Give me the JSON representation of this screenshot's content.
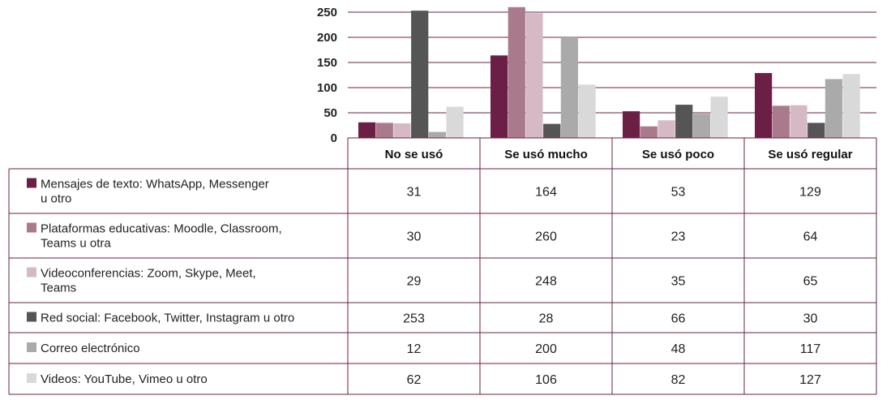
{
  "chart_data": {
    "type": "bar",
    "categories": [
      "No se usó",
      "Se usó mucho",
      "Se usó poco",
      "Se usó regular"
    ],
    "series": [
      {
        "name": "Mensajes de texto:  WhatsApp, Messenger u otro",
        "label_lines": [
          "Mensajes de texto:  WhatsApp, Messenger",
          "u otro"
        ],
        "color": "#6b1f45",
        "values": [
          31,
          164,
          53,
          129
        ]
      },
      {
        "name": "Plataformas educativas: Moodle, Classroom, Teams u otra",
        "label_lines": [
          "Plataformas educativas: Moodle, Classroom,",
          "Teams u otra"
        ],
        "color": "#a87a8c",
        "values": [
          30,
          260,
          23,
          64
        ]
      },
      {
        "name": "Videoconferencias: Zoom, Skype, Meet, Teams",
        "label_lines": [
          "Videoconferencias: Zoom, Skype, Meet,",
          "Teams"
        ],
        "color": "#d5bac6",
        "values": [
          29,
          248,
          35,
          65
        ]
      },
      {
        "name": "Red social: Facebook, Twitter, Instagram u otro",
        "label_lines": [
          "Red social: Facebook, Twitter, Instagram u otro"
        ],
        "color": "#555555",
        "values": [
          253,
          28,
          66,
          30
        ]
      },
      {
        "name": "Correo electrónico",
        "label_lines": [
          "Correo electrónico"
        ],
        "color": "#aaaaaa",
        "values": [
          12,
          200,
          48,
          117
        ]
      },
      {
        "name": "Videos: YouTube, Vimeo u otro",
        "label_lines": [
          "Videos: YouTube, Vimeo u otro"
        ],
        "color": "#d9d9d9",
        "values": [
          62,
          106,
          82,
          127
        ]
      }
    ],
    "yticks": [
      0,
      50,
      100,
      150,
      200,
      250
    ],
    "ylim": [
      0,
      262
    ],
    "grid": true,
    "legend": "data table below chart",
    "title": "",
    "xlabel": "",
    "ylabel": ""
  },
  "colors": {
    "grid": "#6b1f45",
    "table_border": "#6b1f45"
  }
}
